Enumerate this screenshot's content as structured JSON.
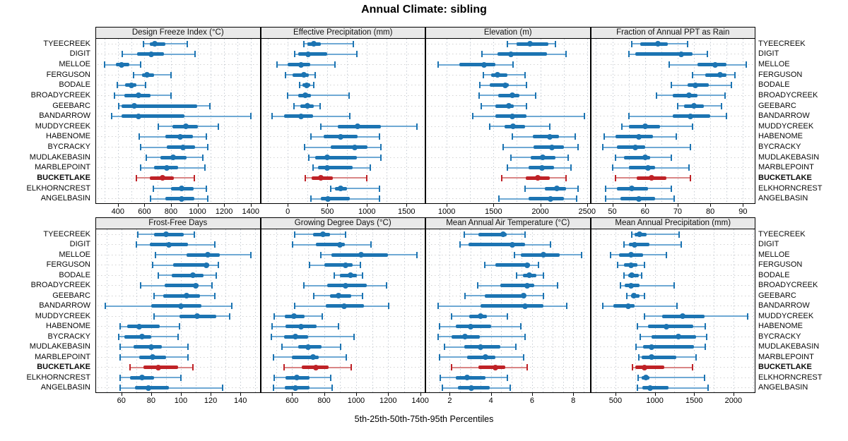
{
  "title": "Annual Climate: sibling",
  "xlabel": "5th-25th-50th-75th-95th Percentiles",
  "colors": {
    "series": "#1c74b2",
    "series_light": "#6fa9d4",
    "highlight": "#bf2227",
    "highlight_light": "#d98585",
    "strip_bg": "#e9e9e9",
    "grid_line": "#c6ccd4",
    "row_line": "#d2d2d2",
    "border": "#000000"
  },
  "sites": [
    "TYEECREEK",
    "DIGIT",
    "MELLOE",
    "FERGUSON",
    "BODALE",
    "BROADYCREEK",
    "GEEBARC",
    "BANDARROW",
    "MUDDYCREEK",
    "HABENOME",
    "BYCRACKY",
    "MUDLAKEBASIN",
    "MARBLEPOINT",
    "BUCKETLAKE",
    "ELKHORNCREST",
    "ANGELBASIN"
  ],
  "highlight_site": "BUCKETLAKE",
  "chart_data": {
    "type": "dotplot",
    "note": "Each row shows 5th-25th-50th-75th-95th percentiles per site; BUCKETLAKE highlighted in red",
    "percentile_labels": [
      "5th",
      "25th",
      "50th",
      "75th",
      "95th"
    ],
    "legend_position": "none",
    "grid": true,
    "panels": [
      {
        "title": "Design Freeze Index (°C)",
        "row": 0,
        "xlim": [
          236,
          1468
        ],
        "ticks": [
          400,
          600,
          800,
          1000,
          1200,
          1400
        ],
        "grid_step": 100,
        "values": [
          [
            595,
            640,
            680,
            755,
            920
          ],
          [
            435,
            545,
            650,
            745,
            980
          ],
          [
            300,
            385,
            430,
            485,
            570
          ],
          [
            520,
            580,
            620,
            670,
            800
          ],
          [
            395,
            455,
            500,
            540,
            610
          ],
          [
            375,
            450,
            555,
            645,
            800
          ],
          [
            405,
            425,
            525,
            995,
            1095
          ],
          [
            355,
            425,
            555,
            900,
            1400
          ],
          [
            705,
            810,
            910,
            1005,
            1155
          ],
          [
            560,
            755,
            870,
            965,
            1065
          ],
          [
            570,
            770,
            890,
            980,
            1075
          ],
          [
            615,
            720,
            815,
            915,
            1040
          ],
          [
            570,
            670,
            770,
            855,
            1055
          ],
          [
            540,
            640,
            735,
            820,
            975
          ],
          [
            665,
            800,
            880,
            970,
            1065
          ],
          [
            645,
            755,
            880,
            975,
            1075
          ]
        ]
      },
      {
        "title": "Effective Precipitation (mm)",
        "row": 0,
        "xlim": [
          -337,
          1730
        ],
        "ticks": [
          0,
          500,
          1000,
          1500
        ],
        "grid_step": 250,
        "values": [
          [
            200,
            250,
            330,
            420,
            830
          ],
          [
            85,
            135,
            260,
            500,
            870
          ],
          [
            -140,
            0,
            170,
            280,
            600
          ],
          [
            -30,
            60,
            200,
            265,
            350
          ],
          [
            150,
            185,
            235,
            280,
            325
          ],
          [
            -5,
            135,
            220,
            290,
            775
          ],
          [
            75,
            155,
            250,
            330,
            405
          ],
          [
            -200,
            -45,
            170,
            320,
            780
          ],
          [
            415,
            635,
            880,
            1180,
            1630
          ],
          [
            290,
            450,
            670,
            880,
            1160
          ],
          [
            215,
            545,
            845,
            1010,
            1180
          ],
          [
            270,
            350,
            495,
            875,
            1180
          ],
          [
            320,
            380,
            495,
            815,
            1040
          ],
          [
            220,
            300,
            420,
            570,
            1000
          ],
          [
            545,
            600,
            665,
            745,
            1160
          ],
          [
            290,
            420,
            505,
            785,
            1160
          ]
        ]
      },
      {
        "title": "Elevation (m)",
        "row": 0,
        "xlim": [
          780,
          2528
        ],
        "ticks": [
          1000,
          1500,
          2000,
          2500
        ],
        "grid_step": 250,
        "values": [
          [
            1645,
            1750,
            1890,
            2090,
            2160
          ],
          [
            1375,
            1540,
            1685,
            2075,
            2275
          ],
          [
            910,
            1135,
            1400,
            1520,
            1710
          ],
          [
            1390,
            1475,
            1540,
            1645,
            1835
          ],
          [
            1355,
            1460,
            1625,
            1660,
            1850
          ],
          [
            1350,
            1550,
            1700,
            1775,
            1950
          ],
          [
            1370,
            1520,
            1660,
            1720,
            1850
          ],
          [
            1275,
            1520,
            1700,
            1850,
            2475
          ],
          [
            1460,
            1620,
            1705,
            1840,
            2100
          ],
          [
            1700,
            1920,
            2100,
            2200,
            2375
          ],
          [
            1600,
            1925,
            2125,
            2250,
            2400
          ],
          [
            1685,
            1900,
            2025,
            2160,
            2300
          ],
          [
            1650,
            1875,
            2020,
            2150,
            2325
          ],
          [
            1590,
            1845,
            1975,
            2100,
            2275
          ],
          [
            1835,
            2050,
            2175,
            2275,
            2400
          ],
          [
            1560,
            1875,
            2110,
            2250,
            2390
          ]
        ]
      },
      {
        "title": "Fraction of Annual PPT as Rain",
        "row": 0,
        "xlim": [
          43.5,
          93.6
        ],
        "ticks": [
          50,
          60,
          70,
          80,
          90
        ],
        "grid_step": 5,
        "values": [
          [
            56,
            58.5,
            64,
            67,
            73
          ],
          [
            55,
            57,
            71,
            74.5,
            79
          ],
          [
            67.5,
            76,
            81.5,
            85,
            91
          ],
          [
            74.5,
            78.5,
            83,
            85,
            87.5
          ],
          [
            68,
            73,
            75.5,
            79.5,
            86.5
          ],
          [
            63.5,
            68.5,
            73.5,
            76,
            84.5
          ],
          [
            70,
            72,
            75,
            78,
            83.5
          ],
          [
            55,
            68.5,
            74,
            80,
            85
          ],
          [
            53,
            55,
            60,
            64.5,
            74.5
          ],
          [
            47.5,
            51,
            58,
            62.5,
            69.5
          ],
          [
            47,
            51.5,
            57,
            60,
            74
          ],
          [
            51,
            53.5,
            60,
            61.5,
            68
          ],
          [
            50,
            55,
            61,
            63,
            73.5
          ],
          [
            51,
            57.5,
            62,
            66.5,
            74
          ],
          [
            48,
            51.5,
            56,
            61,
            68
          ],
          [
            48,
            52.5,
            58,
            63,
            69
          ]
        ]
      },
      {
        "title": "Frost-Free Days",
        "row": 1,
        "xlim": [
          43,
          153
        ],
        "ticks": [
          60,
          80,
          100,
          120,
          140
        ],
        "grid_step": 10,
        "values": [
          [
            71,
            82,
            90,
            102,
            109
          ],
          [
            70,
            79,
            92,
            105,
            123
          ],
          [
            83,
            104,
            118,
            126,
            147
          ],
          [
            81,
            95,
            117,
            119,
            125
          ],
          [
            85,
            94,
            108,
            115,
            124
          ],
          [
            73,
            89,
            110,
            112,
            121
          ],
          [
            82,
            88,
            104,
            113,
            123
          ],
          [
            49,
            80,
            100,
            114,
            134
          ],
          [
            82,
            99,
            111,
            124,
            133
          ],
          [
            59,
            64,
            72,
            86,
            99
          ],
          [
            58,
            62,
            74,
            80,
            98
          ],
          [
            59,
            68,
            80,
            87,
            105
          ],
          [
            59,
            72,
            81,
            90,
            105
          ],
          [
            66,
            75,
            85,
            98,
            108
          ],
          [
            59,
            66,
            74,
            82,
            100
          ],
          [
            59,
            69,
            78,
            92,
            128
          ]
        ]
      },
      {
        "title": "Growing Degree Days (°C)",
        "row": 1,
        "xlim": [
          407,
          1428
        ],
        "ticks": [
          600,
          800,
          1000,
          1200,
          1400
        ],
        "grid_step": 100,
        "values": [
          [
            615,
            730,
            795,
            835,
            935
          ],
          [
            605,
            750,
            900,
            930,
            1095
          ],
          [
            780,
            845,
            1030,
            1200,
            1380
          ],
          [
            710,
            800,
            935,
            980,
            1025
          ],
          [
            865,
            900,
            965,
            1005,
            1040
          ],
          [
            675,
            820,
            935,
            1065,
            1190
          ],
          [
            735,
            835,
            890,
            970,
            1040
          ],
          [
            615,
            810,
            925,
            1050,
            1205
          ],
          [
            490,
            555,
            610,
            680,
            790
          ],
          [
            475,
            560,
            655,
            755,
            890
          ],
          [
            470,
            550,
            620,
            700,
            985
          ],
          [
            535,
            640,
            700,
            785,
            905
          ],
          [
            485,
            600,
            730,
            765,
            940
          ],
          [
            550,
            660,
            750,
            830,
            970
          ],
          [
            490,
            560,
            630,
            710,
            840
          ],
          [
            485,
            555,
            620,
            710,
            850
          ]
        ]
      },
      {
        "title": "Mean Annual Air Temperature (°C)",
        "row": 1,
        "xlim": [
          0.85,
          8.8
        ],
        "ticks": [
          2,
          4,
          6,
          8
        ],
        "grid_step": 0.5,
        "values": [
          [
            2.7,
            3.4,
            4.6,
            4.75,
            5.65
          ],
          [
            2.5,
            2.9,
            5.05,
            5.65,
            6.9
          ],
          [
            5.15,
            5.45,
            6.55,
            7.35,
            8.4
          ],
          [
            3.7,
            4.2,
            5.75,
            5.9,
            6.3
          ],
          [
            5.25,
            5.55,
            5.85,
            6.2,
            6.55
          ],
          [
            3.35,
            4.45,
            5.75,
            6.1,
            7.25
          ],
          [
            2.75,
            3.7,
            5.6,
            5.7,
            6.55
          ],
          [
            1.45,
            3.5,
            5.65,
            6.55,
            7.7
          ],
          [
            2.1,
            2.95,
            3.5,
            3.8,
            4.8
          ],
          [
            1.5,
            2.3,
            3.0,
            4.0,
            5.45
          ],
          [
            1.45,
            2.1,
            2.75,
            3.45,
            5.65
          ],
          [
            1.75,
            2.7,
            3.5,
            4.45,
            5.2
          ],
          [
            1.5,
            2.85,
            3.75,
            4.2,
            5.6
          ],
          [
            2.1,
            3.4,
            4.2,
            4.7,
            5.75
          ],
          [
            1.55,
            2.3,
            2.85,
            3.75,
            4.8
          ],
          [
            1.65,
            2.4,
            3.05,
            3.95,
            4.95
          ]
        ]
      },
      {
        "title": "Mean Annual Precipitation (mm)",
        "row": 1,
        "xlim": [
          190,
          2271
        ],
        "ticks": [
          500,
          1000,
          1500,
          2000
        ],
        "grid_step": 250,
        "values": [
          [
            705,
            745,
            805,
            895,
            1310
          ],
          [
            605,
            675,
            745,
            930,
            1340
          ],
          [
            440,
            545,
            695,
            855,
            1150
          ],
          [
            525,
            605,
            695,
            775,
            870
          ],
          [
            605,
            665,
            705,
            795,
            835
          ],
          [
            565,
            615,
            695,
            805,
            1250
          ],
          [
            645,
            695,
            735,
            810,
            865
          ],
          [
            335,
            475,
            665,
            745,
            1280
          ],
          [
            870,
            1090,
            1350,
            1630,
            2180
          ],
          [
            775,
            915,
            1150,
            1490,
            1645
          ],
          [
            815,
            960,
            1300,
            1525,
            1660
          ],
          [
            765,
            855,
            960,
            1495,
            1645
          ],
          [
            795,
            835,
            960,
            1270,
            1525
          ],
          [
            715,
            755,
            870,
            1120,
            1480
          ],
          [
            785,
            835,
            885,
            930,
            1635
          ],
          [
            775,
            840,
            945,
            1170,
            1675
          ]
        ]
      }
    ]
  }
}
